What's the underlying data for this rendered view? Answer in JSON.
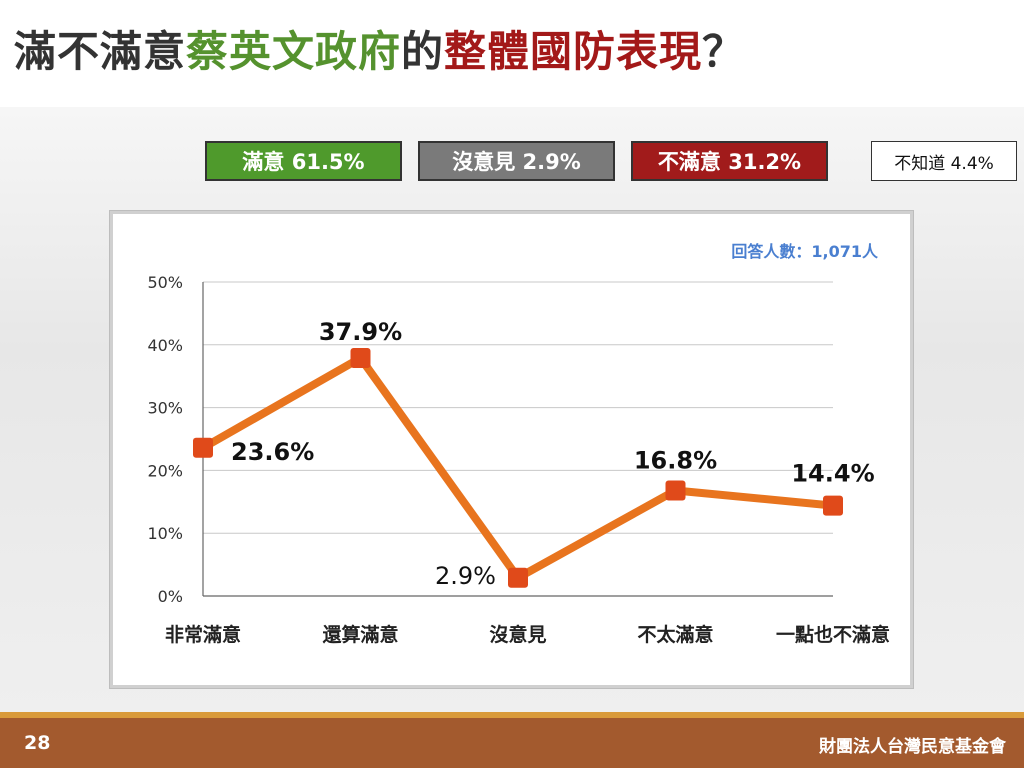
{
  "title": {
    "part1": "滿不滿意",
    "part2": "蔡英文政府",
    "part3": "的",
    "part4": "整體國防表現",
    "part5": "？"
  },
  "summary": [
    {
      "label": "滿意 61.5%",
      "bg": "#4f9a2c",
      "fg": "#ffffff"
    },
    {
      "label": "沒意見 2.9%",
      "bg": "#7a7a7a",
      "fg": "#ffffff"
    },
    {
      "label": "不滿意 31.2%",
      "bg": "#a11b1b",
      "fg": "#ffffff"
    },
    {
      "label": "不知道 4.4%",
      "bg": "#ffffff",
      "fg": "#111111"
    }
  ],
  "respondents": "回答人數：1,071人",
  "colors": {
    "line": "#e8741e",
    "marker": "#e04a1a",
    "grid": "#c8c8c8",
    "green": "#55922e",
    "red": "#a31919"
  },
  "chart_data": {
    "type": "line",
    "categories": [
      "非常滿意",
      "還算滿意",
      "沒意見",
      "不太滿意",
      "一點也不滿意"
    ],
    "series": [
      {
        "values": [
          23.6,
          37.9,
          2.9,
          16.8,
          14.4
        ]
      }
    ],
    "data_labels": [
      "23.6%",
      "37.9%",
      "2.9%",
      "16.8%",
      "14.4%"
    ],
    "y_ticks": [
      "0%",
      "10%",
      "20%",
      "30%",
      "40%",
      "50%"
    ],
    "ylim": [
      0,
      50
    ],
    "grid": true,
    "legend": "none"
  },
  "footer": {
    "page_number": "28",
    "organization": "財團法人台灣民意基金會"
  }
}
